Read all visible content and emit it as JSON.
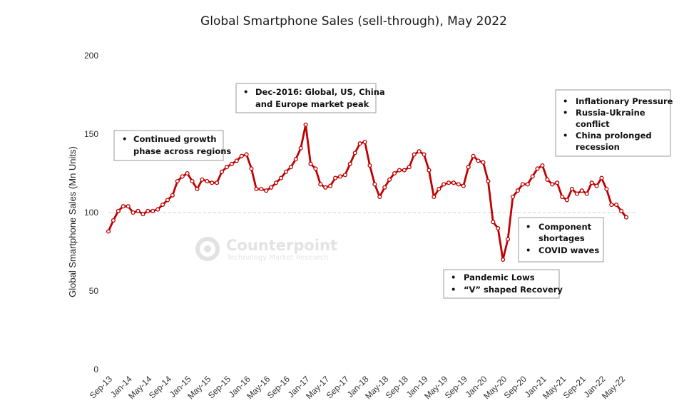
{
  "chart_data": {
    "type": "line",
    "title": "Global Smartphone Sales (sell-through), May 2022",
    "ylabel": "Global Smartphone Sales (Mn Units)",
    "xlabel": "",
    "ylim": [
      0,
      200
    ],
    "yticks": [
      "0",
      "50",
      "100",
      "150",
      "200"
    ],
    "reference_line": 100,
    "grid": false,
    "line_color": "#c00000",
    "x_tick_labels": [
      "Sep-13",
      "Jan-14",
      "May-14",
      "Sep-14",
      "Jan-15",
      "May-15",
      "Sep-15",
      "Jan-16",
      "May-16",
      "Sep-16",
      "Jan-17",
      "May-17",
      "Sep-17",
      "Jan-18",
      "May-18",
      "Sep-18",
      "Jan-19",
      "May-19",
      "Sep-19",
      "Jan-20",
      "May-20",
      "Sep-20",
      "Jan-21",
      "May-21",
      "Sep-21",
      "Jan-22",
      "May-22"
    ],
    "series": [
      {
        "values": [
          88,
          95,
          101,
          104,
          104,
          100,
          101,
          99,
          101,
          101,
          102,
          105,
          108,
          111,
          120,
          123,
          125,
          120,
          115,
          121,
          120,
          119,
          119,
          126,
          129,
          131,
          133,
          136,
          137,
          128,
          115,
          115,
          114,
          116,
          119,
          122,
          126,
          129,
          134,
          141,
          156,
          131,
          128,
          118,
          116,
          117,
          122,
          123,
          124,
          131,
          138,
          144,
          145,
          130,
          118,
          110,
          116,
          121,
          125,
          127,
          127,
          129,
          137,
          139,
          137,
          127,
          110,
          115,
          118,
          119,
          119,
          118,
          117,
          129,
          136,
          133,
          132,
          120,
          94,
          90,
          70,
          83,
          110,
          114,
          118,
          118,
          123,
          128,
          130,
          121,
          118,
          119,
          110,
          108,
          115,
          112,
          114,
          112,
          119,
          117,
          122,
          115,
          105,
          105,
          101,
          97
        ]
      }
    ]
  },
  "annotations": [
    {
      "lines": [
        "•",
        "Continued growth",
        "phase across regions"
      ]
    },
    {
      "lines": [
        "•",
        "Dec-2016: Global, US, China",
        "and Europe market peak"
      ]
    },
    {
      "bullets": [
        [
          "Inflationary Pressure"
        ],
        [
          "Russia-Ukraine",
          "conflict"
        ],
        [
          "China prolonged",
          "recession"
        ]
      ]
    },
    {
      "bullets": [
        [
          "Component",
          "shortages"
        ],
        [
          "COVID waves"
        ]
      ]
    },
    {
      "bullets": [
        [
          "Pandemic Lows"
        ],
        [
          "“V” shaped Recovery"
        ]
      ]
    }
  ],
  "watermark": {
    "name": "Counterpoint",
    "tagline": "Technology Market Research"
  }
}
